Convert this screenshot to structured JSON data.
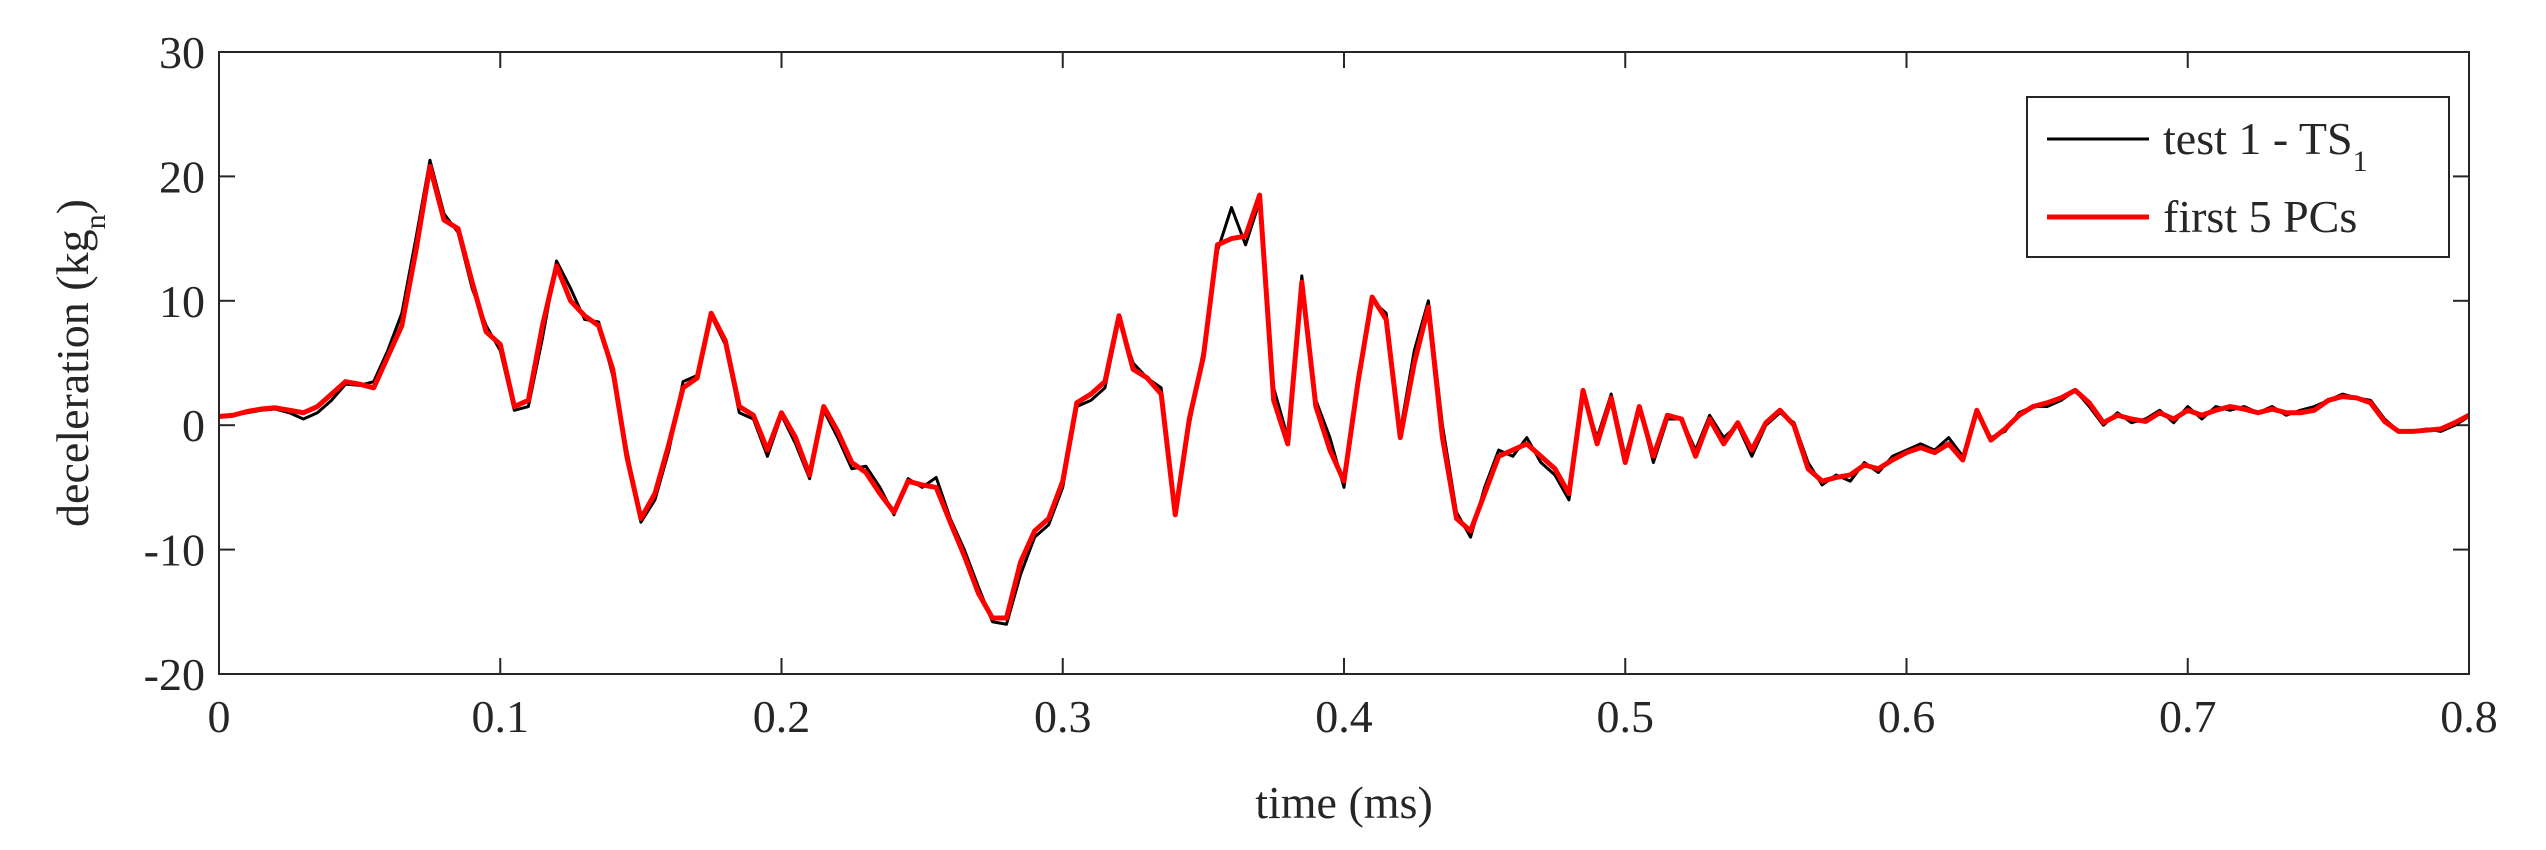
{
  "chart_data": {
    "type": "line",
    "xlabel": "time (ms)",
    "ylabel": [
      "deceleration (kg",
      "n",
      ")"
    ],
    "xlim": [
      0,
      0.8
    ],
    "xticks": [
      0,
      0.1,
      0.2,
      0.3,
      0.4,
      0.5,
      0.6,
      0.7,
      0.8
    ],
    "ylim": [
      -20,
      30
    ],
    "yticks": [
      -20,
      -10,
      0,
      10,
      20,
      30
    ],
    "legend": "upper right",
    "x": [
      0,
      0.005,
      0.01,
      0.015,
      0.02,
      0.025,
      0.03,
      0.035,
      0.04,
      0.045,
      0.05,
      0.055,
      0.06,
      0.065,
      0.07,
      0.075,
      0.08,
      0.085,
      0.09,
      0.095,
      0.1,
      0.105,
      0.11,
      0.115,
      0.12,
      0.125,
      0.13,
      0.135,
      0.14,
      0.145,
      0.15,
      0.155,
      0.16,
      0.165,
      0.17,
      0.175,
      0.18,
      0.185,
      0.19,
      0.195,
      0.2,
      0.205,
      0.21,
      0.215,
      0.22,
      0.225,
      0.23,
      0.235,
      0.24,
      0.245,
      0.25,
      0.255,
      0.26,
      0.265,
      0.27,
      0.275,
      0.28,
      0.285,
      0.29,
      0.295,
      0.3,
      0.305,
      0.31,
      0.315,
      0.32,
      0.325,
      0.33,
      0.335,
      0.34,
      0.345,
      0.35,
      0.355,
      0.36,
      0.365,
      0.37,
      0.375,
      0.38,
      0.385,
      0.39,
      0.395,
      0.4,
      0.405,
      0.41,
      0.415,
      0.42,
      0.425,
      0.43,
      0.435,
      0.44,
      0.445,
      0.45,
      0.455,
      0.46,
      0.465,
      0.47,
      0.475,
      0.48,
      0.485,
      0.49,
      0.495,
      0.5,
      0.505,
      0.51,
      0.515,
      0.52,
      0.525,
      0.53,
      0.535,
      0.54,
      0.545,
      0.55,
      0.555,
      0.56,
      0.565,
      0.57,
      0.575,
      0.58,
      0.585,
      0.59,
      0.595,
      0.6,
      0.605,
      0.61,
      0.615,
      0.62,
      0.625,
      0.63,
      0.635,
      0.64,
      0.645,
      0.65,
      0.655,
      0.66,
      0.665,
      0.67,
      0.675,
      0.68,
      0.685,
      0.69,
      0.695,
      0.7,
      0.705,
      0.71,
      0.715,
      0.72,
      0.725,
      0.73,
      0.735,
      0.74,
      0.745,
      0.75,
      0.755,
      0.76,
      0.765,
      0.77,
      0.775,
      0.78,
      0.785,
      0.79,
      0.795,
      0.8
    ],
    "series": [
      {
        "name": [
          "test 1 - TS",
          "1"
        ],
        "color": "#000000",
        "values": [
          0.7,
          0.8,
          1.0,
          1.2,
          1.3,
          1.0,
          0.5,
          1.0,
          2.0,
          3.3,
          3.2,
          3.5,
          6,
          9,
          15,
          21.3,
          17,
          15.5,
          11,
          8,
          6,
          1.2,
          1.5,
          7,
          13.2,
          11,
          8.5,
          8.3,
          4,
          -2,
          -7.8,
          -6,
          -2,
          3.5,
          4,
          8.8,
          6.5,
          1,
          0.5,
          -2.5,
          0.8,
          -1.5,
          -4.3,
          1.2,
          -1,
          -3.5,
          -3.3,
          -5,
          -7.2,
          -4.3,
          -5,
          -4.2,
          -7.5,
          -10,
          -13,
          -15.8,
          -16,
          -12,
          -9,
          -8,
          -5,
          1.5,
          2,
          3,
          8.5,
          5,
          3.8,
          3,
          -7,
          0,
          6,
          14,
          17.5,
          14.5,
          18,
          3,
          -1,
          12,
          2,
          -1,
          -5,
          4,
          10,
          9,
          -0.5,
          6,
          10,
          0,
          -7,
          -9,
          -5,
          -2,
          -2.5,
          -1,
          -3,
          -4,
          -6,
          2.5,
          -1,
          2.5,
          -2.5,
          1.5,
          -3,
          0.5,
          0.5,
          -2,
          0.8,
          -1,
          0,
          -2.5,
          0,
          1,
          0.2,
          -3,
          -4.8,
          -4,
          -4.5,
          -3,
          -3.8,
          -2.5,
          -2,
          -1.5,
          -2,
          -1,
          -2.5,
          1,
          -1,
          -0.5,
          1,
          1.5,
          1.5,
          2,
          2.8,
          1.5,
          0,
          1,
          0.2,
          0.5,
          1.2,
          0.2,
          1.5,
          0.5,
          1.5,
          1.2,
          1.5,
          1,
          1.5,
          0.8,
          1.2,
          1.5,
          2,
          2.5,
          2.2,
          2,
          0.5,
          -0.5,
          -0.5,
          -0.3,
          -0.5,
          0,
          0.7
        ]
      },
      {
        "name": "first 5 PCs",
        "color": "#ff0000",
        "values": [
          0.7,
          0.8,
          1.1,
          1.3,
          1.4,
          1.2,
          1.0,
          1.5,
          2.5,
          3.5,
          3.3,
          3.0,
          5.5,
          8,
          14,
          20.8,
          16.5,
          15.8,
          11.5,
          7.5,
          6.5,
          1.5,
          2,
          8,
          12.8,
          10,
          8.8,
          8,
          4.5,
          -2.5,
          -7.5,
          -5.5,
          -1.5,
          3,
          3.8,
          9,
          6.8,
          1.5,
          0.8,
          -2,
          1,
          -1,
          -4,
          1.5,
          -0.5,
          -3,
          -3.8,
          -5.5,
          -7,
          -4.5,
          -4.8,
          -5,
          -7.8,
          -10.5,
          -13.5,
          -15.5,
          -15.5,
          -11,
          -8.5,
          -7.5,
          -4.5,
          1.8,
          2.5,
          3.5,
          8.8,
          4.5,
          3.8,
          2.5,
          -7.2,
          0.5,
          5.5,
          14.5,
          15,
          15.2,
          18.5,
          2,
          -1.5,
          11.5,
          1.5,
          -2,
          -4.5,
          3.5,
          10.3,
          8.5,
          -1,
          5,
          9.5,
          -1,
          -7.5,
          -8.5,
          -5.5,
          -2.5,
          -2,
          -1.5,
          -2.5,
          -3.5,
          -5.5,
          2.8,
          -1.5,
          2.2,
          -3,
          1.5,
          -2.5,
          0.8,
          0.5,
          -2.5,
          0.5,
          -1.5,
          0.2,
          -2,
          0.2,
          1.2,
          0,
          -3.5,
          -4.5,
          -4.2,
          -4,
          -3.2,
          -3.5,
          -2.8,
          -2.2,
          -1.8,
          -2.2,
          -1.5,
          -2.8,
          1.2,
          -1.2,
          -0.3,
          0.8,
          1.5,
          1.8,
          2.2,
          2.8,
          1.8,
          0.2,
          0.8,
          0.5,
          0.3,
          1,
          0.5,
          1.2,
          0.8,
          1.2,
          1.5,
          1.3,
          1,
          1.3,
          1,
          1,
          1.2,
          2,
          2.3,
          2.2,
          1.8,
          0.3,
          -0.5,
          -0.5,
          -0.4,
          -0.3,
          0.2,
          0.8
        ]
      }
    ]
  }
}
